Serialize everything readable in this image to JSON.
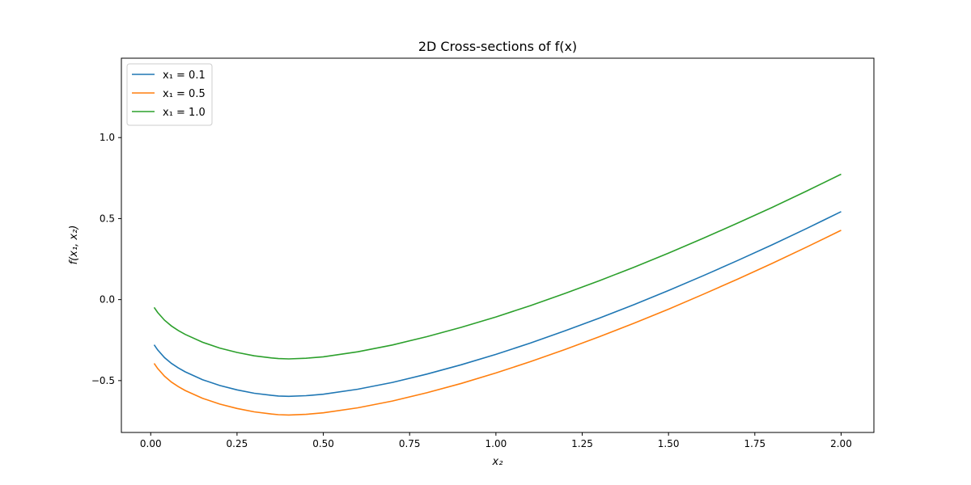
{
  "chart_data": {
    "type": "line",
    "title": "2D Cross-sections of f(x)",
    "xlabel": "x₂",
    "ylabel": "f(x₁, x₂)",
    "xlim": [
      -0.085,
      2.095
    ],
    "ylim": [
      -0.82,
      1.49
    ],
    "xticks": [
      0.0,
      0.25,
      0.5,
      0.75,
      1.0,
      1.25,
      1.5,
      1.75,
      2.0
    ],
    "xtick_labels": [
      "0.00",
      "0.25",
      "0.50",
      "0.75",
      "1.00",
      "1.25",
      "1.50",
      "1.75",
      "2.00"
    ],
    "yticks": [
      -0.5,
      0.0,
      0.5,
      1.0
    ],
    "ytick_labels": [
      "−0.5",
      "0.0",
      "0.5",
      "1.0"
    ],
    "grid": false,
    "legend_position": "top-left",
    "x": [
      0.01,
      0.02,
      0.04,
      0.06,
      0.08,
      0.1,
      0.15,
      0.2,
      0.25,
      0.3,
      0.35,
      0.37,
      0.4,
      0.45,
      0.5,
      0.6,
      0.7,
      0.8,
      0.9,
      1.0,
      1.1,
      1.2,
      1.3,
      1.4,
      1.5,
      1.6,
      1.7,
      1.8,
      1.9,
      2.0
    ],
    "series": [
      {
        "name": "x₁ = 0.1",
        "color": "#1f77b4",
        "values": [
          -0.279,
          -0.31,
          -0.358,
          -0.394,
          -0.422,
          -0.446,
          -0.494,
          -0.53,
          -0.557,
          -0.578,
          -0.591,
          -0.595,
          -0.597,
          -0.593,
          -0.584,
          -0.553,
          -0.511,
          -0.46,
          -0.402,
          -0.338,
          -0.268,
          -0.193,
          -0.114,
          -0.031,
          0.056,
          0.147,
          0.241,
          0.338,
          0.439,
          0.543
        ]
      },
      {
        "name": "x₁ = 0.5",
        "color": "#ff7f0e",
        "values": [
          -0.394,
          -0.425,
          -0.473,
          -0.509,
          -0.537,
          -0.561,
          -0.609,
          -0.645,
          -0.672,
          -0.693,
          -0.706,
          -0.71,
          -0.712,
          -0.708,
          -0.699,
          -0.668,
          -0.626,
          -0.575,
          -0.517,
          -0.453,
          -0.383,
          -0.308,
          -0.229,
          -0.146,
          -0.059,
          0.032,
          0.126,
          0.223,
          0.324,
          0.428
        ]
      },
      {
        "name": "x₁ = 1.0",
        "color": "#2ca02c",
        "values": [
          -0.048,
          -0.079,
          -0.127,
          -0.163,
          -0.191,
          -0.215,
          -0.263,
          -0.299,
          -0.326,
          -0.347,
          -0.36,
          -0.364,
          -0.366,
          -0.362,
          -0.353,
          -0.322,
          -0.28,
          -0.229,
          -0.171,
          -0.107,
          -0.037,
          0.038,
          0.117,
          0.2,
          0.287,
          0.378,
          0.472,
          0.569,
          0.67,
          0.774
        ]
      }
    ]
  }
}
